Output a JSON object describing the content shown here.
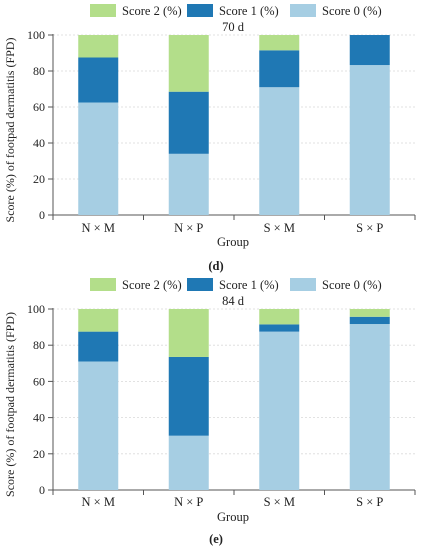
{
  "colors": {
    "score2": "#b3de8a",
    "score1": "#1f78b4",
    "score0": "#a6cee3",
    "axis": "#555555",
    "grid": "#d9d9d9"
  },
  "chart_data": [
    {
      "type": "bar",
      "stacked": true,
      "panel_label": "(d)",
      "title": "70 d",
      "xlabel": "Group",
      "ylabel": "Score (%) of footpad dermatitis (FPD)",
      "ylim": [
        0,
        100
      ],
      "yticks": [
        0,
        20,
        40,
        60,
        80,
        100
      ],
      "grid": true,
      "legend_position": "top",
      "categories": [
        "N × M",
        "N × P",
        "S × M",
        "S × P"
      ],
      "series": [
        {
          "name": "Score 0 (%)",
          "values": [
            62.5,
            34,
            71,
            83.3
          ]
        },
        {
          "name": "Score 1 (%)",
          "values": [
            25,
            34.5,
            20.5,
            16.7
          ]
        },
        {
          "name": "Score 2 (%)",
          "values": [
            12.5,
            31.5,
            8.5,
            0
          ]
        }
      ],
      "legend_order": [
        "Score 2 (%)",
        "Score 1 (%)",
        "Score 0 (%)"
      ]
    },
    {
      "type": "bar",
      "stacked": true,
      "panel_label": "(e)",
      "title": "84 d",
      "xlabel": "Group",
      "ylabel": "Score (%) of footpad dermatitis (FPD)",
      "ylim": [
        0,
        100
      ],
      "yticks": [
        0,
        20,
        40,
        60,
        80,
        100
      ],
      "grid": true,
      "legend_position": "top",
      "categories": [
        "N × M",
        "N × P",
        "S × M",
        "S × P"
      ],
      "series": [
        {
          "name": "Score 0 (%)",
          "values": [
            71,
            30,
            87.5,
            91.7
          ]
        },
        {
          "name": "Score 1 (%)",
          "values": [
            16.5,
            43.5,
            4,
            4
          ]
        },
        {
          "name": "Score 2 (%)",
          "values": [
            12.5,
            26.5,
            8.5,
            4.3
          ]
        }
      ],
      "legend_order": [
        "Score 2 (%)",
        "Score 1 (%)",
        "Score 0 (%)"
      ]
    }
  ]
}
